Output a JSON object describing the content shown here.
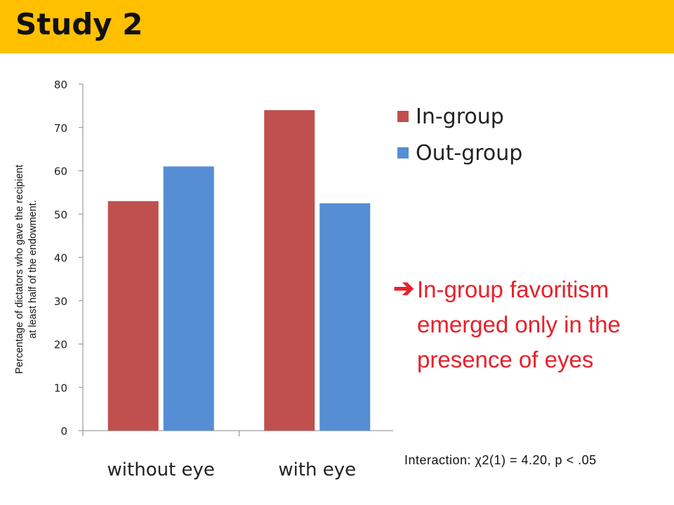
{
  "slide": {
    "title": "Study 2"
  },
  "colors": {
    "title_bar": "#FFC000",
    "in_group": "#C0504D",
    "out_group": "#558ED5",
    "note": "#E8202A",
    "axis": "#888888"
  },
  "chart_data": {
    "type": "bar",
    "categories": [
      "without eye",
      "with eye"
    ],
    "series": [
      {
        "name": "In-group",
        "values": [
          53,
          74
        ]
      },
      {
        "name": "Out-group",
        "values": [
          61,
          52.5
        ]
      }
    ],
    "ylabel": "Percentage of dictators  who gave  the recipient\nat least half of the endowment.",
    "ylim": [
      0,
      80
    ],
    "yticks": [
      0,
      10,
      20,
      30,
      40,
      50,
      60,
      70,
      80
    ],
    "ytick_labels": [
      "0",
      "10",
      "20",
      "30",
      "40",
      "50",
      "60",
      "70",
      "80"
    ],
    "grid": false,
    "legend_position": "top-right"
  },
  "note": {
    "arrow_icon": "right-arrow-icon",
    "arrow_glyph": "➔",
    "text": "In-group favoritism emerged only in the presence of eyes"
  },
  "stats": "Interaction: χ2(1) = 4.20, p < .05"
}
